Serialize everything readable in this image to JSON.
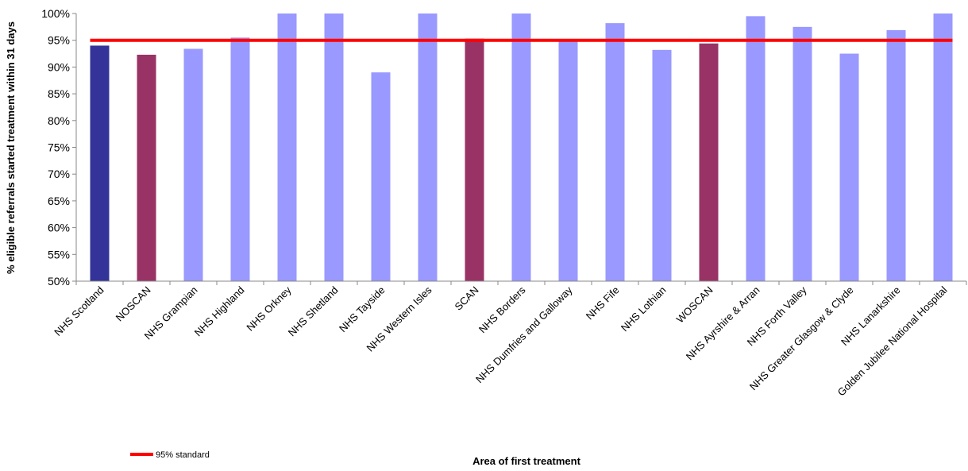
{
  "chart_data": {
    "type": "bar",
    "xlabel": "Area of first treatment",
    "ylabel": "% eligible referrals started treatment within 31 days",
    "ylim": [
      50,
      100
    ],
    "yticks": [
      "50%",
      "55%",
      "60%",
      "65%",
      "70%",
      "75%",
      "80%",
      "85%",
      "90%",
      "95%",
      "100%"
    ],
    "grid": false,
    "categories": [
      "NHS Scotland",
      "NOSCAN",
      "NHS Grampian",
      "NHS Highland",
      "NHS Orkney",
      "NHS Shetland",
      "NHS Tayside",
      "NHS Western Isles",
      "SCAN",
      "NHS Borders",
      "NHS Dumfries and Galloway",
      "NHS Fife",
      "NHS Lothian",
      "WOSCAN",
      "NHS Ayrshire & Arran",
      "NHS Forth Valley",
      "NHS Greater Glasgow & Clyde",
      "NHS Lanarkshire",
      "Golden Jubilee National Hospital"
    ],
    "values": [
      94.0,
      92.3,
      93.4,
      95.5,
      100,
      100,
      89.0,
      100,
      95.3,
      100,
      95.1,
      98.2,
      93.2,
      94.4,
      99.5,
      97.5,
      92.5,
      96.9,
      100
    ],
    "bar_kind": [
      "scotland",
      "network",
      "board",
      "board",
      "board",
      "board",
      "board",
      "board",
      "network",
      "board",
      "board",
      "board",
      "board",
      "network",
      "board",
      "board",
      "board",
      "board",
      "board"
    ],
    "colors": {
      "scotland": "#333399",
      "network": "#993366",
      "board": "#9999ff",
      "standard": "#ff0000"
    },
    "standard": {
      "name": "95% standard",
      "value": 95
    },
    "legend_position": "bottom-left"
  }
}
